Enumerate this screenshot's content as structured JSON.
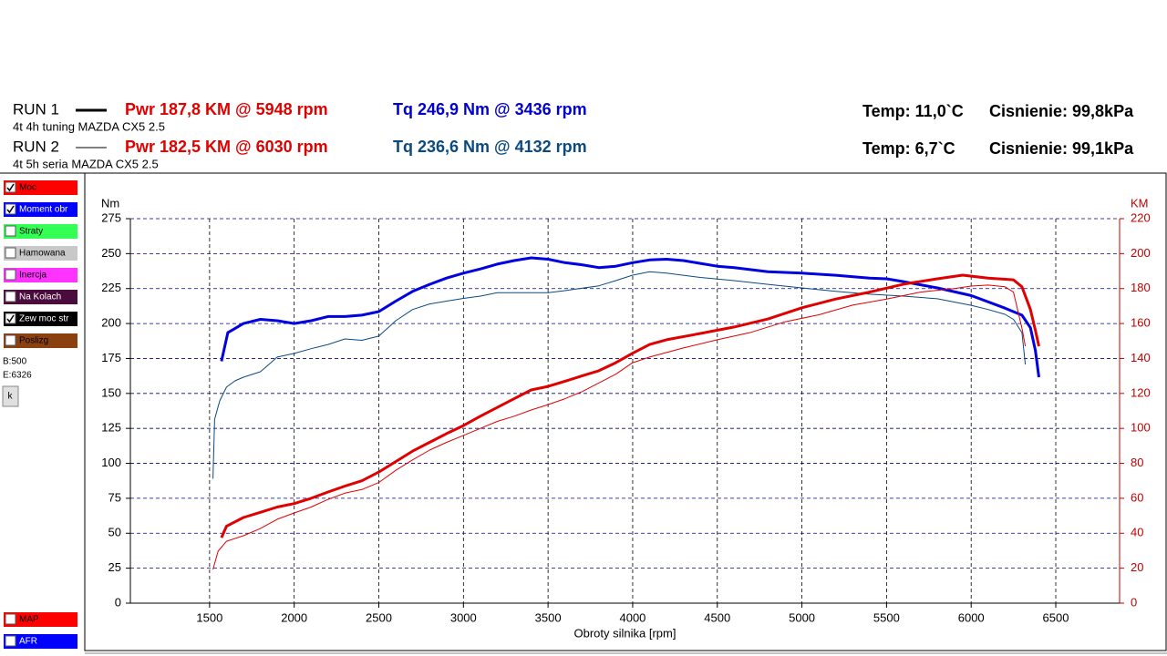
{
  "header": {
    "runs": [
      {
        "name": "RUN 1",
        "description": "4t 4h  tuning MAZDA CX5 2.5",
        "power": "Pwr  187,8 KM @ 5948 rpm",
        "torque": "Tq 246,9 Nm @ 3436 rpm",
        "torque_color": "#0000d0",
        "temp": "Temp: 11,0`C",
        "pressure": "Cisnienie: 99,8kPa",
        "line_width": 3
      },
      {
        "name": "RUN 2",
        "description": "4t 5h seria MAZDA CX5 2.5",
        "power": "Pwr  182,5 KM @ 6030 rpm",
        "torque": "Tq 236,6 Nm @ 4132 rpm",
        "torque_color": "#0a4a80",
        "temp": "Temp: 6,7`C",
        "pressure": "Cisnienie: 99,1kPa",
        "line_width": 1
      }
    ]
  },
  "sidebar": {
    "checkboxes": [
      {
        "label": "Moc",
        "color": "#ff0000",
        "checked": true
      },
      {
        "label": "Moment obr",
        "color": "#0000ff",
        "checked": true
      },
      {
        "label": "Straty",
        "color": "#33ff55",
        "checked": false
      },
      {
        "label": "Hamowana",
        "color": "#c8c8c8",
        "checked": false
      },
      {
        "label": "Inercja",
        "color": "#ff33ff",
        "checked": false
      },
      {
        "label": "Na Kolach",
        "color": "#4a0c3c",
        "checked": false
      },
      {
        "label": "Zew moc str",
        "color": "#000000",
        "checked": true
      },
      {
        "label": "Poslizg",
        "color": "#8b4010",
        "checked": false
      }
    ],
    "info": [
      "B:500",
      "E:6326"
    ],
    "button": "k",
    "bottom_checkboxes": [
      {
        "label": "MAP",
        "color": "#ff0000",
        "checked": false
      },
      {
        "label": "AFR",
        "color": "#0000ff",
        "checked": false
      }
    ]
  },
  "chart_data": {
    "type": "line",
    "xlabel": "Obroty silnika [rpm]",
    "ylabel": "Nm",
    "y2label": "KM",
    "xlim": [
      1032,
      6877
    ],
    "xticks": [
      1500,
      2000,
      2500,
      3000,
      3500,
      4000,
      4500,
      5000,
      5500,
      6000,
      6500
    ],
    "ylim": [
      0,
      275
    ],
    "yticks": [
      0,
      25,
      50,
      75,
      100,
      125,
      150,
      175,
      200,
      225,
      250,
      275
    ],
    "y2lim": [
      0,
      220
    ],
    "y2ticks": [
      0,
      20,
      40,
      60,
      80,
      100,
      120,
      140,
      160,
      180,
      200,
      220
    ],
    "grid": true,
    "series": [
      {
        "color": "#0000e0",
        "line_width": 3,
        "axis": "y",
        "x": [
          1570,
          1608,
          1700,
          1800,
          1900,
          2000,
          2100,
          2200,
          2300,
          2400,
          2500,
          2600,
          2700,
          2800,
          2900,
          3000,
          3100,
          3200,
          3300,
          3400,
          3500,
          3600,
          3700,
          3800,
          3900,
          4000,
          4100,
          4200,
          4300,
          4400,
          4500,
          4600,
          4800,
          5000,
          5200,
          5400,
          5500,
          5600,
          5800,
          6000,
          6200,
          6300,
          6350,
          6380,
          6400
        ],
        "values": [
          173,
          193.5,
          200,
          203,
          202,
          200,
          202,
          205,
          205,
          206,
          208.5,
          216,
          223,
          228,
          232.5,
          236,
          239,
          242.5,
          245,
          247,
          246,
          243.5,
          242,
          240,
          241,
          243.5,
          245.5,
          246,
          245,
          243,
          241,
          240,
          237,
          236,
          234.5,
          232.5,
          232,
          230,
          225.5,
          220,
          211,
          206,
          197,
          180.5,
          161.6
        ]
      },
      {
        "color": "#0a4a80",
        "line_width": 1,
        "axis": "y",
        "x": [
          1520,
          1530,
          1560,
          1600,
          1650,
          1700,
          1800,
          1850,
          1900,
          2000,
          2100,
          2200,
          2300,
          2400,
          2500,
          2600,
          2700,
          2800,
          2900,
          3000,
          3100,
          3200,
          3500,
          3600,
          3800,
          3900,
          4000,
          4100,
          4200,
          4400,
          4600,
          4800,
          5000,
          5200,
          5400,
          5600,
          5800,
          6000,
          6100,
          6200,
          6250,
          6300,
          6320
        ],
        "values": [
          89,
          131.6,
          144.7,
          154.5,
          159,
          161.6,
          165.5,
          170.7,
          176,
          178.6,
          182,
          185,
          189,
          188,
          191,
          202,
          210,
          214,
          216,
          218,
          219.6,
          222,
          222,
          223.5,
          227,
          230.7,
          234.6,
          237,
          236,
          233,
          230.7,
          228,
          225.5,
          223,
          221,
          219.6,
          217.7,
          213,
          210,
          206.6,
          203,
          193.5,
          170.7
        ]
      },
      {
        "color": "#e00000",
        "line_width": 3,
        "axis": "y2",
        "x": [
          1570,
          1600,
          1700,
          1800,
          1900,
          2000,
          2100,
          2200,
          2300,
          2400,
          2500,
          2600,
          2700,
          2800,
          2900,
          3000,
          3100,
          3200,
          3300,
          3400,
          3500,
          3600,
          3700,
          3800,
          3900,
          4000,
          4100,
          4200,
          4400,
          4600,
          4800,
          5000,
          5200,
          5400,
          5600,
          5800,
          5950,
          6100,
          6250,
          6300,
          6350,
          6380,
          6400
        ],
        "values": [
          37.5,
          44,
          49,
          52,
          55,
          57,
          60,
          63.6,
          67,
          70,
          75,
          81,
          87,
          92,
          97,
          101.6,
          107,
          112,
          117,
          122,
          124,
          127,
          130,
          133,
          137.6,
          143,
          148,
          150.7,
          154.3,
          158,
          162.6,
          169,
          174,
          178,
          182.5,
          185.6,
          187.7,
          186,
          185,
          181,
          168,
          156,
          147
        ]
      },
      {
        "color": "#e00000",
        "line_width": 1,
        "axis": "y2",
        "x": [
          1520,
          1550,
          1600,
          1700,
          1800,
          1900,
          2000,
          2100,
          2200,
          2300,
          2400,
          2500,
          2600,
          2700,
          2800,
          2900,
          3000,
          3100,
          3200,
          3300,
          3400,
          3500,
          3600,
          3700,
          3800,
          3900,
          4000,
          4100,
          4300,
          4500,
          4700,
          4900,
          5100,
          5300,
          5500,
          5700,
          5900,
          6000,
          6100,
          6200,
          6250,
          6300,
          6320
        ],
        "values": [
          19.3,
          29.7,
          35.4,
          38.6,
          42.7,
          48,
          51.6,
          55,
          59.4,
          63,
          65,
          69,
          76,
          82,
          87.6,
          92,
          96,
          100,
          104,
          107,
          110.5,
          113.6,
          117,
          121,
          126,
          131,
          137.6,
          140.8,
          146,
          150.7,
          155,
          161,
          165,
          170.5,
          174,
          178,
          180,
          181.4,
          182,
          181,
          178,
          157.4,
          147
        ]
      }
    ]
  }
}
